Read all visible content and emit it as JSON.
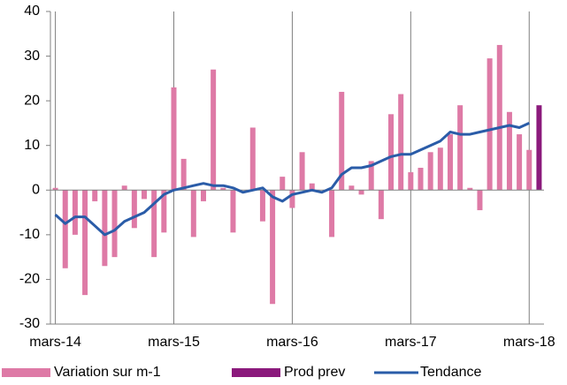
{
  "chart_data": {
    "type": "bar",
    "categories": [
      "mars-14",
      null,
      null,
      null,
      null,
      null,
      null,
      null,
      null,
      null,
      null,
      null,
      "mars-15",
      null,
      null,
      null,
      null,
      null,
      null,
      null,
      null,
      null,
      null,
      null,
      "mars-16",
      null,
      null,
      null,
      null,
      null,
      null,
      null,
      null,
      null,
      null,
      null,
      "mars-17",
      null,
      null,
      null,
      null,
      null,
      null,
      null,
      null,
      null,
      null,
      null,
      "mars-18",
      null
    ],
    "series": [
      {
        "name": "Variation sur m-1",
        "type": "bar",
        "color": "#de7aa6",
        "values": [
          0.5,
          -17.5,
          -10,
          -23.5,
          -2.5,
          -17,
          -15,
          1,
          -8.5,
          -2,
          -15,
          -9.5,
          23,
          7,
          -10.5,
          -2.5,
          27,
          0.5,
          -9.5,
          0,
          14,
          -7,
          -25.5,
          3,
          -4,
          8.5,
          1.5,
          0,
          -10.5,
          22,
          1,
          -1,
          6.5,
          -6.5,
          17,
          21.5,
          4,
          5,
          8.5,
          9.5,
          12.5,
          19,
          0.5,
          -4.5,
          29.5,
          32.5,
          17.5,
          12.5,
          9,
          null
        ]
      },
      {
        "name": "Prod prev",
        "type": "bar",
        "color": "#8b1a7c",
        "values": [
          null,
          null,
          null,
          null,
          null,
          null,
          null,
          null,
          null,
          null,
          null,
          null,
          null,
          null,
          null,
          null,
          null,
          null,
          null,
          null,
          null,
          null,
          null,
          null,
          null,
          null,
          null,
          null,
          null,
          null,
          null,
          null,
          null,
          null,
          null,
          null,
          null,
          null,
          null,
          null,
          null,
          null,
          null,
          null,
          null,
          null,
          null,
          null,
          null,
          19
        ]
      },
      {
        "name": "Tendance",
        "type": "line",
        "color": "#2a5ca8",
        "values": [
          -5.5,
          -7.5,
          -6,
          -6,
          -8,
          -10,
          -9,
          -7,
          -6,
          -5,
          -3,
          -1,
          0,
          0.5,
          1,
          1.5,
          1,
          1,
          0.5,
          -0.5,
          0,
          0.5,
          -1.5,
          -2.5,
          -1,
          -0.5,
          0,
          -0.5,
          0.5,
          3.5,
          5,
          5,
          5.5,
          6.5,
          7.5,
          8,
          8,
          9,
          10,
          11,
          13,
          12.5,
          12.5,
          13,
          13.5,
          14,
          14.5,
          14,
          15,
          null
        ]
      }
    ],
    "ylim": [
      -30,
      40
    ],
    "yticks": [
      -30,
      -20,
      -10,
      0,
      10,
      20,
      30,
      40
    ],
    "legend": "bottom"
  }
}
